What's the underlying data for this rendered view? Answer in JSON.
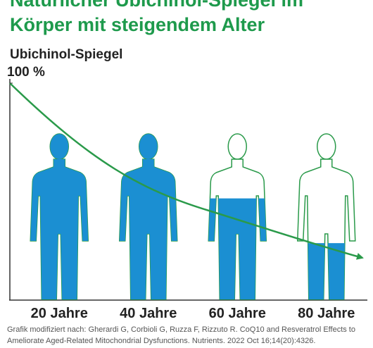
{
  "chart_data": {
    "type": "figure-fill",
    "title": [
      "Natürlicher Ubichinol-Spiegel im",
      "Körper mit steigendem Alter"
    ],
    "y_label": "Ubichinol-Spiegel",
    "ylim": [
      0,
      100
    ],
    "yticks": [
      {
        "value": 100,
        "label": "100 %"
      }
    ],
    "categories": [
      "20 Jahre",
      "40 Jahre",
      "60 Jahre",
      "80 Jahre"
    ],
    "values": [
      100,
      100,
      61,
      34
    ],
    "color": "#1b8fd2",
    "outline_color": "#2a9a4a",
    "source": [
      "Grafik modifiziert nach: Gherardi G, Corbioli G, Ruzza F, Rizzuto R. CoQ10 and Resveratrol Effects to",
      "Ameliorate Aged-Related Mitochondrial Dysfunctions. Nutrients. 2022 Oct 16;14(20):4326."
    ]
  }
}
